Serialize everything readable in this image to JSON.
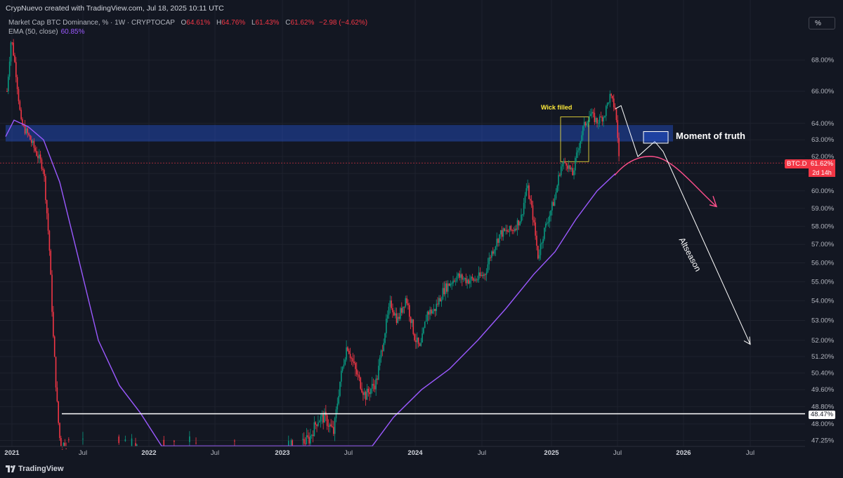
{
  "header": {
    "author_line": "CrypNuevo created with TradingView.com, Jul 18, 2025 10:11 UTC"
  },
  "symbol": {
    "name": "Market Cap BTC Dominance, % · 1W · CRYPTOCAP",
    "open_label": "O",
    "open": "64.61%",
    "high_label": "H",
    "high": "64.76%",
    "low_label": "L",
    "low": "61.43%",
    "close_label": "C",
    "close": "61.62%",
    "change": "−2.98 (−4.62%)"
  },
  "indicator": {
    "name": "EMA (50, close)",
    "value": "60.85%",
    "color": "#9b59ff"
  },
  "toolbar": {
    "scale_button": "%"
  },
  "price_axis": {
    "symbol_tag": "BTC.D",
    "last_price": "61.62%",
    "countdown": "2d 14h",
    "support_level": "48.47%"
  },
  "annotations": {
    "moment_of_truth": "Moment of truth",
    "wick_filled": "Wick filled",
    "altseason": "Altseason"
  },
  "footer": {
    "brand": "TradingView"
  },
  "colors": {
    "background": "#131722",
    "up_candle": "#089981",
    "down_candle": "#f23645",
    "resistance_zone": "#2962ff",
    "projection_ema": "#ff4f8b"
  },
  "chart_data": {
    "type": "candlestick",
    "ylabel": "",
    "scale": "log",
    "yticks": [
      "68.00%",
      "66.00%",
      "64.00%",
      "63.00%",
      "62.00%",
      "61.00%",
      "60.00%",
      "59.00%",
      "58.00%",
      "57.00%",
      "56.00%",
      "55.00%",
      "54.00%",
      "53.00%",
      "52.00%",
      "51.20%",
      "50.40%",
      "49.60%",
      "48.80%",
      "48.00%",
      "47.25%"
    ],
    "xticks": [
      "2021",
      "Jul",
      "2022",
      "Jul",
      "2023",
      "Jul",
      "2024",
      "Jul",
      "2025",
      "Jul",
      "2026",
      "Jul"
    ],
    "bold_xticks": [
      "2021",
      "2022",
      "2023",
      "2024",
      "2025",
      "2026"
    ],
    "ylim": [
      47.0,
      70.0
    ],
    "resistance_zone": [
      62.9,
      63.9
    ],
    "support_line": 48.47,
    "last_close": 61.62,
    "ema_last": 60.85
  }
}
